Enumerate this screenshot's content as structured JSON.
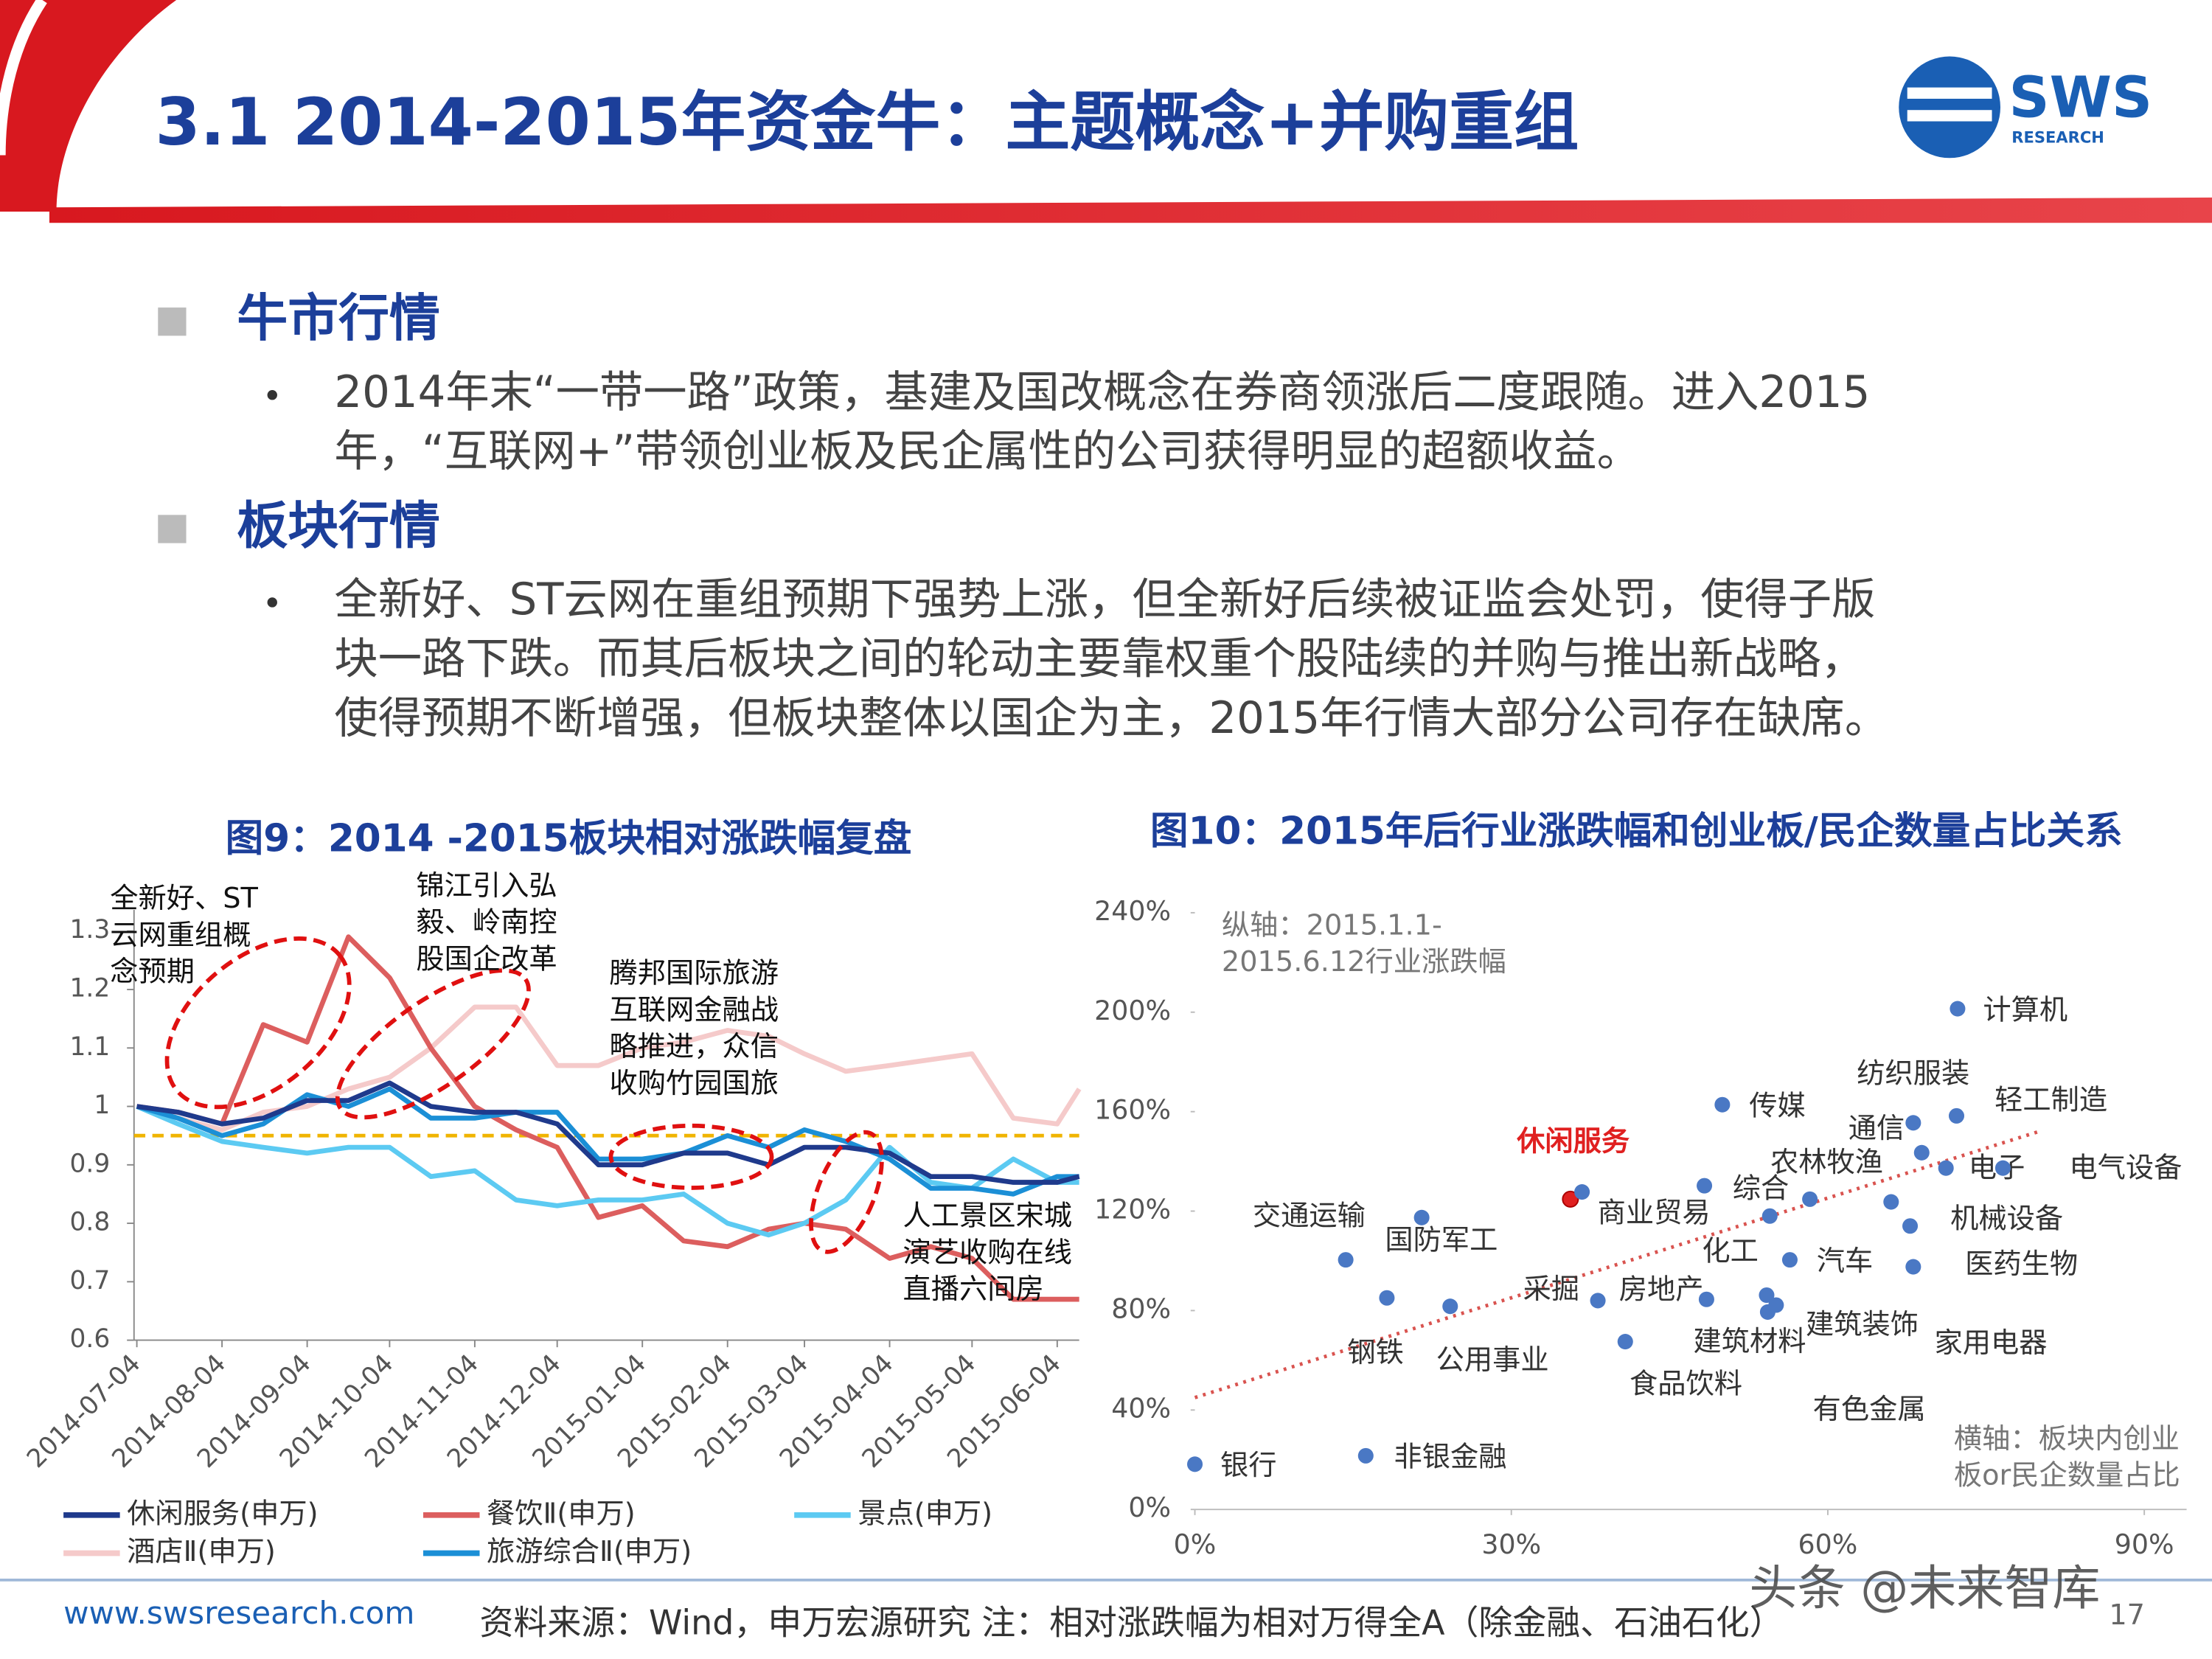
{
  "header": {
    "title": "3.1 2014-2015年资金牛：主题概念+并购重组",
    "logo": "SWS",
    "logo_sub": "RESEARCH"
  },
  "sections": [
    {
      "heading": "牛市行情",
      "lines": [
        "2014年末“一带一路”政策，基建及国改概念在券商领涨后二度跟随。进入2015",
        "年，“互联网+”带领创业板及民企属性的公司获得明显的超额收益。"
      ]
    },
    {
      "heading": "板块行情",
      "lines": [
        "全新好、ST云网在重组预期下强势上涨，但全新好后续被证监会处罚，使得子版",
        "块一路下跌。而其后板块之间的轮动主要靠权重个股陆续的并购与推出新战略，",
        "使得预期不断增强，但板块整体以国企为主，2015年行情大部分公司存在缺席。"
      ]
    }
  ],
  "chart_data": [
    {
      "type": "line",
      "title": "图9：2014 -2015板块相对涨跌幅复盘",
      "x": [
        "2014-07-04",
        "2014-07-19",
        "2014-08-04",
        "2014-08-19",
        "2014-09-04",
        "2014-09-19",
        "2014-10-04",
        "2014-10-19",
        "2014-11-04",
        "2014-11-19",
        "2014-12-04",
        "2014-12-19",
        "2015-01-04",
        "2015-01-19",
        "2015-02-04",
        "2015-02-19",
        "2015-03-04",
        "2015-03-19",
        "2015-04-04",
        "2015-04-19",
        "2015-05-04",
        "2015-05-19",
        "2015-06-04",
        "2015-06-12"
      ],
      "xlim": [
        "2014-07-04",
        "2015-06-12"
      ],
      "xticks": [
        "2014-07-04",
        "2014-08-04",
        "2014-09-04",
        "2014-10-04",
        "2014-11-04",
        "2014-12-04",
        "2015-01-04",
        "2015-02-04",
        "2015-03-04",
        "2015-04-04",
        "2015-05-04",
        "2015-06-04"
      ],
      "ylim": [
        0.6,
        1.3
      ],
      "yticks": [
        0.6,
        0.7,
        0.8,
        0.9,
        1,
        1.1,
        1.2,
        1.3
      ],
      "reference_line": {
        "value": 0.95,
        "color": "#f0b400"
      },
      "series": [
        {
          "name": "酒店Ⅱ(申万)",
          "color": "#f5caca",
          "values": [
            1.0,
            0.98,
            0.96,
            0.99,
            1.0,
            1.03,
            1.05,
            1.1,
            1.17,
            1.17,
            1.07,
            1.07,
            1.1,
            1.11,
            1.13,
            1.12,
            1.09,
            1.06,
            1.07,
            1.08,
            1.09,
            0.98,
            0.97,
            1.03
          ]
        },
        {
          "name": "餐饮Ⅱ(申万)",
          "color": "#dc5e5e",
          "values": [
            1.0,
            0.99,
            0.97,
            1.14,
            1.11,
            1.29,
            1.22,
            1.1,
            1.0,
            0.96,
            0.93,
            0.81,
            0.83,
            0.77,
            0.76,
            0.79,
            0.8,
            0.79,
            0.74,
            0.76,
            0.74,
            0.67,
            0.67,
            0.67
          ]
        },
        {
          "name": "景点(申万)",
          "color": "#5ccaf2",
          "values": [
            1.0,
            0.97,
            0.94,
            0.93,
            0.92,
            0.93,
            0.93,
            0.88,
            0.89,
            0.84,
            0.83,
            0.84,
            0.84,
            0.85,
            0.8,
            0.78,
            0.8,
            0.84,
            0.93,
            0.87,
            0.86,
            0.91,
            0.87,
            0.87
          ]
        },
        {
          "name": "旅游综合Ⅱ(申万)",
          "color": "#1b8fd6",
          "values": [
            1.0,
            0.98,
            0.95,
            0.97,
            1.02,
            1.0,
            1.03,
            0.98,
            0.98,
            0.99,
            0.99,
            0.91,
            0.91,
            0.92,
            0.95,
            0.93,
            0.96,
            0.94,
            0.91,
            0.86,
            0.86,
            0.85,
            0.88,
            0.88
          ]
        },
        {
          "name": "休闲服务(申万)",
          "color": "#1f3a8c",
          "values": [
            1.0,
            0.99,
            0.97,
            0.98,
            1.01,
            1.01,
            1.04,
            1.0,
            0.99,
            0.99,
            0.97,
            0.9,
            0.9,
            0.92,
            0.92,
            0.9,
            0.93,
            0.93,
            0.92,
            0.88,
            0.88,
            0.87,
            0.87,
            0.88
          ]
        }
      ],
      "annotations": [
        [
          "全新好、ST",
          "云网重组概",
          "念预期"
        ],
        [
          "锦江引入弘",
          "毅、岭南控",
          "股国企改革"
        ],
        [
          "腾邦国际旅游",
          "互联网金融战",
          "略推进，众信",
          "收购竹园国旅"
        ],
        [
          "人工景区宋城",
          "演艺收购在线",
          "直播六间房"
        ]
      ]
    },
    {
      "type": "scatter",
      "title": "图10：2015年后行业涨跌幅和创业板/民企数量占比关系",
      "xlim": [
        0,
        90
      ],
      "xticks": [
        {
          "value": 0,
          "label": "0%"
        },
        {
          "value": 30,
          "label": "30%"
        },
        {
          "value": 60,
          "label": "60%"
        },
        {
          "value": 90,
          "label": "90%"
        }
      ],
      "ylim": [
        0,
        240
      ],
      "yticks": [
        {
          "value": 0,
          "label": "0%"
        },
        {
          "value": 40,
          "label": "40%"
        },
        {
          "value": 80,
          "label": "80%"
        },
        {
          "value": 120,
          "label": "120%"
        },
        {
          "value": 160,
          "label": "160%"
        },
        {
          "value": 200,
          "label": "200%"
        },
        {
          "value": 240,
          "label": "240%"
        }
      ],
      "y_note": [
        "纵轴：2015.1.1-",
        "2015.6.12行业涨跌幅"
      ],
      "x_note": [
        "横轴：板块内创业",
        "板or民企数量占比"
      ],
      "trendline": {
        "color": "#d9534f",
        "x": [
          0,
          80
        ],
        "y": [
          45,
          152
        ]
      },
      "points": [
        {
          "label": "银行",
          "x": 0,
          "y": 18.2,
          "color": "#4a78c4"
        },
        {
          "label": "非银金融",
          "x": 16.2,
          "y": 21.6,
          "color": "#4a78c4"
        },
        {
          "label": "钢铁",
          "x": 18.2,
          "y": 85.1,
          "color": "#4a78c4"
        },
        {
          "label": "公用事业",
          "x": 24.2,
          "y": 81.7,
          "color": "#4a78c4"
        },
        {
          "label": "交通运输",
          "x": 14.3,
          "y": 100.4,
          "color": "#4a78c4"
        },
        {
          "label": "国防军工",
          "x": 21.5,
          "y": 117.4,
          "color": "#4a78c4"
        },
        {
          "label": "休闲服务",
          "x": 35.6,
          "y": 124.8,
          "color": "#e02020"
        },
        {
          "label": "商业贸易",
          "x": 36.7,
          "y": 127.7,
          "color": "#4a78c4"
        },
        {
          "label": "采掘",
          "x": 38.2,
          "y": 84.0,
          "color": "#4a78c4"
        },
        {
          "label": "食品饮料",
          "x": 40.8,
          "y": 67.5,
          "color": "#4a78c4"
        },
        {
          "label": "房地产",
          "x": 48.5,
          "y": 84.5,
          "color": "#4a78c4"
        },
        {
          "label": "综合",
          "x": 48.3,
          "y": 130.2,
          "color": "#4a78c4"
        },
        {
          "label": "化工",
          "x": 54.5,
          "y": 118.0,
          "color": "#4a78c4"
        },
        {
          "label": "汽车",
          "x": 56.4,
          "y": 100.4,
          "color": "#4a78c4"
        },
        {
          "label": "建筑材料",
          "x": 54.2,
          "y": 86.2,
          "color": "#4a78c4"
        },
        {
          "label": "建筑装饰",
          "x": 55.1,
          "y": 82.2,
          "color": "#4a78c4"
        },
        {
          "label": "有色金属",
          "x": 54.3,
          "y": 79.4,
          "color": "#4a78c4"
        },
        {
          "label": "传媒",
          "x": 50.0,
          "y": 162.8,
          "color": "#4a78c4"
        },
        {
          "label": "农林牧渔",
          "x": 58.3,
          "y": 124.8,
          "color": "#4a78c4"
        },
        {
          "label": "通信",
          "x": 68.9,
          "y": 143.5,
          "color": "#4a78c4"
        },
        {
          "label": "纺织服装",
          "x": 68.1,
          "y": 155.5,
          "color": "#4a78c4"
        },
        {
          "label": "轻工制造",
          "x": 72.2,
          "y": 158.3,
          "color": "#4a78c4"
        },
        {
          "label": "电子",
          "x": 71.2,
          "y": 137.3,
          "color": "#4a78c4"
        },
        {
          "label": "电气设备",
          "x": 76.6,
          "y": 137.3,
          "color": "#4a78c4"
        },
        {
          "label": "计算机",
          "x": 72.3,
          "y": 201.4,
          "color": "#4a78c4"
        },
        {
          "label": "机械设备",
          "x": 66.0,
          "y": 123.7,
          "color": "#4a78c4"
        },
        {
          "label": "医药生物",
          "x": 67.8,
          "y": 114.0,
          "color": "#4a78c4"
        },
        {
          "label": "家用电器",
          "x": 68.1,
          "y": 97.6,
          "color": "#4a78c4"
        }
      ]
    }
  ],
  "footer": {
    "website": "www.swsresearch.com",
    "source": "资料来源：Wind，申万宏源研究 注：相对涨跌幅为相对万得全A（除金融、石油石化）",
    "page": "17",
    "watermark": "头条 @未来智库"
  }
}
